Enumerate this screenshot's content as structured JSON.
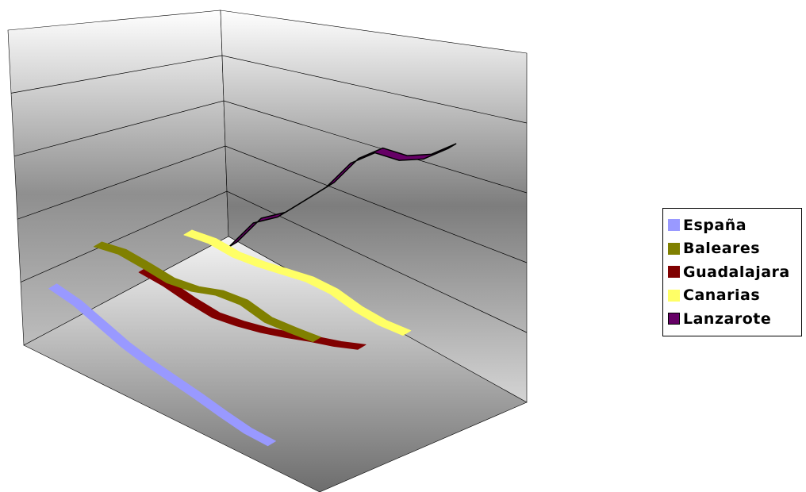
{
  "chart_data": {
    "type": "line",
    "title": "",
    "xlabel": "",
    "ylabel": "",
    "style": "3d-ribbon",
    "grid": true,
    "legend_position": "right",
    "series": [
      {
        "name": "España",
        "color": "#9999ff",
        "values": [
          14,
          13.5,
          12.5,
          11.5,
          10.8,
          10.3,
          9.8,
          9.2,
          8.7,
          8.6
        ]
      },
      {
        "name": "Baleares",
        "color": "#808000",
        "values": [
          16,
          16.5,
          16.3,
          16,
          16.4,
          17.3,
          17.6,
          17,
          17.2,
          17.5
        ]
      },
      {
        "name": "Guadalajara",
        "color": "#800000",
        "values": [
          10.5,
          10.3,
          9.8,
          9.5,
          9.9,
          10.5,
          11.3,
          12.2,
          13,
          14
        ]
      },
      {
        "name": "Canarias",
        "color": "#ffff66",
        "values": [
          12,
          12.4,
          12.2,
          12.5,
          13,
          13.5,
          13.5,
          12.9,
          12.7,
          12.9
        ]
      },
      {
        "name": "Lanzarote",
        "color": "#660066",
        "values": [
          8,
          12,
          14,
          17,
          20,
          24,
          26.5,
          27,
          28.5,
          31
        ]
      }
    ]
  },
  "legend": {
    "items": [
      {
        "label": "España",
        "color": "#9999ff"
      },
      {
        "label": "Baleares",
        "color": "#808000"
      },
      {
        "label": "Guadalajara",
        "color": "#800000"
      },
      {
        "label": "Canarias",
        "color": "#ffff66"
      },
      {
        "label": "Lanzarote",
        "color": "#660066"
      }
    ]
  }
}
